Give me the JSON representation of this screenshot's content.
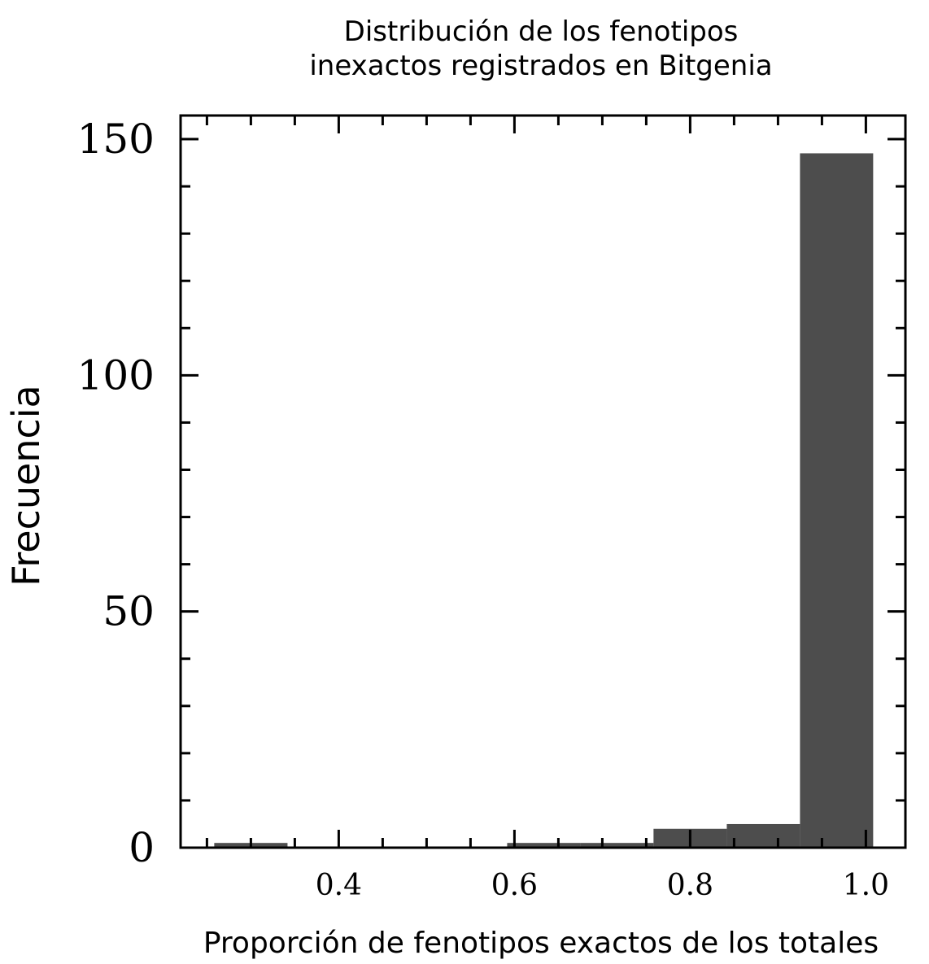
{
  "chart_data": {
    "type": "bar",
    "title_lines": [
      "Distribución de los fenotipos",
      "inexactos registrados en Bitgenia"
    ],
    "xlabel": "Proporción de fenotipos exactos de los totales",
    "ylabel": "Frecuencia",
    "xlim": [
      0.22,
      1.045
    ],
    "ylim": [
      0,
      155
    ],
    "x_ticks": [
      0.4,
      0.6,
      0.8,
      1.0
    ],
    "x_tick_labels": [
      "0.4",
      "0.6",
      "0.8",
      "1.0"
    ],
    "y_ticks": [
      0,
      50,
      100,
      150
    ],
    "y_tick_labels": [
      "0",
      "50",
      "100",
      "150"
    ],
    "bins": [
      {
        "x0": 0.2583,
        "x1": 0.3417,
        "value": 1
      },
      {
        "x0": 0.3417,
        "x1": 0.425,
        "value": 0
      },
      {
        "x0": 0.425,
        "x1": 0.5083,
        "value": 0
      },
      {
        "x0": 0.5083,
        "x1": 0.5917,
        "value": 0
      },
      {
        "x0": 0.5917,
        "x1": 0.675,
        "value": 1
      },
      {
        "x0": 0.675,
        "x1": 0.7583,
        "value": 1
      },
      {
        "x0": 0.7583,
        "x1": 0.8417,
        "value": 4
      },
      {
        "x0": 0.8417,
        "x1": 0.925,
        "value": 5
      },
      {
        "x0": 0.925,
        "x1": 1.0083,
        "value": 147
      }
    ],
    "bar_color": "#4d4d4d",
    "grid": false
  }
}
